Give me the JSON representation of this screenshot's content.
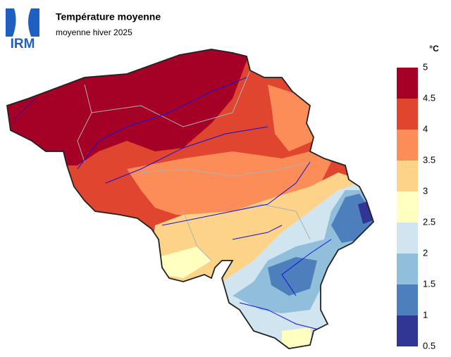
{
  "header": {
    "logo": "IRM",
    "title": "Température moyenne",
    "subtitle": "moyenne hiver 2025"
  },
  "legend": {
    "unit": "°C",
    "ticks": [
      0.5,
      1,
      1.5,
      2,
      2.5,
      3,
      3.5,
      4,
      4.5,
      5
    ],
    "colors": [
      "#313695",
      "#4e7fbd",
      "#91bfdb",
      "#d1e5f0",
      "#ffffbf",
      "#fdd38a",
      "#fc8d59",
      "#e0452f",
      "#a50026"
    ]
  }
}
